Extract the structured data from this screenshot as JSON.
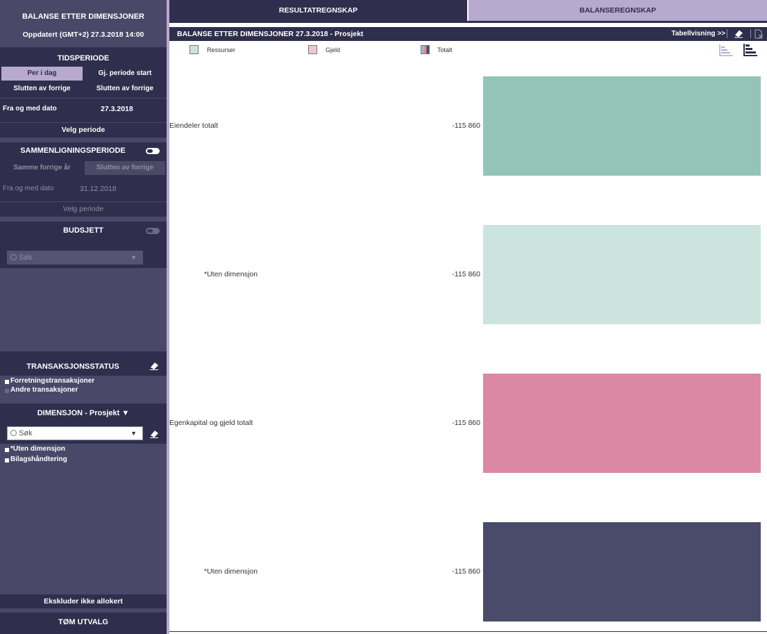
{
  "sidebar": {
    "header_title": "BALANSE ETTER DIMENSJONER",
    "updated": "Oppdatert (GMT+2)  27.3.2018 14:00",
    "period": {
      "title": "TIDSPERIODE",
      "buttons": [
        "Per i dag",
        "Gj. periode start",
        "Slutten av forrige",
        "Slutten av forrige"
      ],
      "from_label": "Fra og med dato",
      "from_value": "27.3.2018",
      "select_label": "Velg periode"
    },
    "comparison": {
      "title": "SAMMENLIGNINGSPERIODE",
      "buttons": [
        "Samme forrige år",
        "Slutten av forrige"
      ],
      "from_label": "Fra og med dato",
      "from_value": "31.12.2018",
      "select_label": "Velg periode"
    },
    "budget": {
      "title": "BUDSJETT",
      "search_placeholder": "Søk"
    },
    "transaction_status": {
      "title": "TRANSAKSJONSSTATUS",
      "items": [
        "Forretningstransaksjoner",
        "Andre transaksjoner"
      ]
    },
    "dimension": {
      "title": "DIMENSJON - Prosjekt",
      "search_placeholder": "Søk",
      "items": [
        "*Uten dimensjon",
        "Bilagshåndtering"
      ]
    },
    "exclude_label": "Ekskluder ikke allokert",
    "clear_label": "TØM UTVALG"
  },
  "tabs": [
    "RESULTATREGNSKAP",
    "BALANSEREGNSKAP"
  ],
  "chart_header": {
    "title": "BALANSE ETTER DIMENSJONER  27.3.2018 - Prosjekt",
    "table_view": "Tabellvisning >>"
  },
  "legend": [
    "Ressurser",
    "Gjeld",
    "Totalt"
  ],
  "colors": {
    "sidebar_bg": "#2f2e4d",
    "accent": "#b7a9cf",
    "ressurser": "#94c4b8",
    "ressurser_light": "#cce4de",
    "gjeld": "#db88a5",
    "totalt": "#4a4a6a"
  },
  "chart_data": {
    "type": "bar",
    "categories": [
      "Eiendeler totalt",
      "*Uten dimensjon",
      "Egenkapital og gjeld totalt",
      "*Uten dimensjon"
    ],
    "values": [
      -115860,
      -115860,
      -115860,
      -115860
    ],
    "value_labels": [
      "-115 860",
      "-115 860",
      "-115 860",
      "-115 860"
    ],
    "series": [
      {
        "name": "Ressurser",
        "values": [
          -115860,
          -115860,
          null,
          null
        ]
      },
      {
        "name": "Gjeld",
        "values": [
          null,
          null,
          -115860,
          null
        ]
      },
      {
        "name": "Totalt",
        "values": [
          null,
          null,
          null,
          -115860
        ]
      }
    ],
    "orientation": "horizontal"
  }
}
